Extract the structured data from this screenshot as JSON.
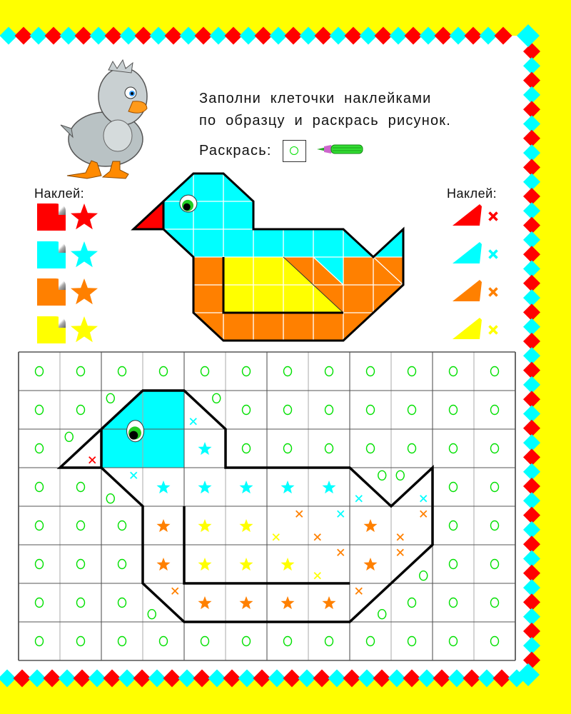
{
  "instructions": {
    "line1": "Заполни клеточки наклейками",
    "line2": "по образцу и раскрась рисунок.",
    "color_label": "Раскрась:",
    "color_symbol": "circle",
    "color_tool": "green-pencil-icon"
  },
  "colors": {
    "red": "#ff0000",
    "cyan": "#00ffff",
    "orange": "#ff8000",
    "yellow": "#ffff00",
    "green": "#00e000",
    "page_background": "#ffff00"
  },
  "left_legend": {
    "title": "Наклей:",
    "items": [
      {
        "sticker": "square",
        "symbol": "star",
        "color": "red"
      },
      {
        "sticker": "square",
        "symbol": "star",
        "color": "cyan"
      },
      {
        "sticker": "square",
        "symbol": "star",
        "color": "orange"
      },
      {
        "sticker": "square",
        "symbol": "star",
        "color": "yellow"
      }
    ]
  },
  "right_legend": {
    "title": "Наклей:",
    "items": [
      {
        "sticker": "triangle",
        "symbol": "cross",
        "color": "red"
      },
      {
        "sticker": "triangle",
        "symbol": "cross",
        "color": "cyan"
      },
      {
        "sticker": "triangle",
        "symbol": "cross",
        "color": "orange"
      },
      {
        "sticker": "triangle",
        "symbol": "cross",
        "color": "yellow"
      }
    ]
  },
  "grid": {
    "columns": 12,
    "rows": 8,
    "cell_legend": {
      "o": "green circle",
      "c": "cyan star",
      "y": "yellow star",
      "n": "orange star",
      ".": "no center mark"
    },
    "cells": [
      "oooooooooooo",
      "oo...ooooooo",
      "o...cooooooo",
      "oo.ccccc..oo",
      "ooonyy..n.oo",
      "ooonyyy.n.oo",
      "ooo.nnnn.ooo",
      "oooooooooooo"
    ],
    "corner_marks": [
      {
        "row": 1,
        "col": 2,
        "corner": "tl",
        "shape": "circle",
        "color": "green"
      },
      {
        "row": 1,
        "col": 4,
        "corner": "tr",
        "shape": "circle",
        "color": "green"
      },
      {
        "row": 1,
        "col": 4,
        "corner": "bl",
        "shape": "cross",
        "color": "cyan"
      },
      {
        "row": 2,
        "col": 1,
        "corner": "tl",
        "shape": "circle",
        "color": "green"
      },
      {
        "row": 2,
        "col": 1,
        "corner": "br",
        "shape": "cross",
        "color": "red"
      },
      {
        "row": 3,
        "col": 2,
        "corner": "tr",
        "shape": "cross",
        "color": "cyan"
      },
      {
        "row": 3,
        "col": 2,
        "corner": "bl",
        "shape": "circle",
        "color": "green"
      },
      {
        "row": 3,
        "col": 8,
        "corner": "tr",
        "shape": "circle",
        "color": "green"
      },
      {
        "row": 3,
        "col": 9,
        "corner": "tl",
        "shape": "circle",
        "color": "green"
      },
      {
        "row": 3,
        "col": 8,
        "corner": "bl",
        "shape": "cross",
        "color": "cyan"
      },
      {
        "row": 3,
        "col": 9,
        "corner": "br",
        "shape": "cross",
        "color": "cyan"
      },
      {
        "row": 4,
        "col": 6,
        "corner": "tr",
        "shape": "cross",
        "color": "orange"
      },
      {
        "row": 4,
        "col": 6,
        "corner": "bl",
        "shape": "cross",
        "color": "yellow"
      },
      {
        "row": 4,
        "col": 7,
        "corner": "tr",
        "shape": "cross",
        "color": "cyan"
      },
      {
        "row": 4,
        "col": 7,
        "corner": "bl",
        "shape": "cross",
        "color": "orange"
      },
      {
        "row": 4,
        "col": 9,
        "corner": "tr",
        "shape": "cross",
        "color": "orange"
      },
      {
        "row": 4,
        "col": 9,
        "corner": "bl",
        "shape": "cross",
        "color": "orange"
      },
      {
        "row": 5,
        "col": 7,
        "corner": "tr",
        "shape": "cross",
        "color": "orange"
      },
      {
        "row": 5,
        "col": 7,
        "corner": "bl",
        "shape": "cross",
        "color": "yellow"
      },
      {
        "row": 5,
        "col": 9,
        "corner": "tl",
        "shape": "cross",
        "color": "orange"
      },
      {
        "row": 5,
        "col": 9,
        "corner": "br",
        "shape": "circle",
        "color": "green"
      },
      {
        "row": 6,
        "col": 3,
        "corner": "tr",
        "shape": "cross",
        "color": "orange"
      },
      {
        "row": 6,
        "col": 3,
        "corner": "bl",
        "shape": "circle",
        "color": "green"
      },
      {
        "row": 6,
        "col": 8,
        "corner": "tl",
        "shape": "cross",
        "color": "orange"
      },
      {
        "row": 6,
        "col": 8,
        "corner": "br",
        "shape": "circle",
        "color": "green"
      }
    ]
  }
}
